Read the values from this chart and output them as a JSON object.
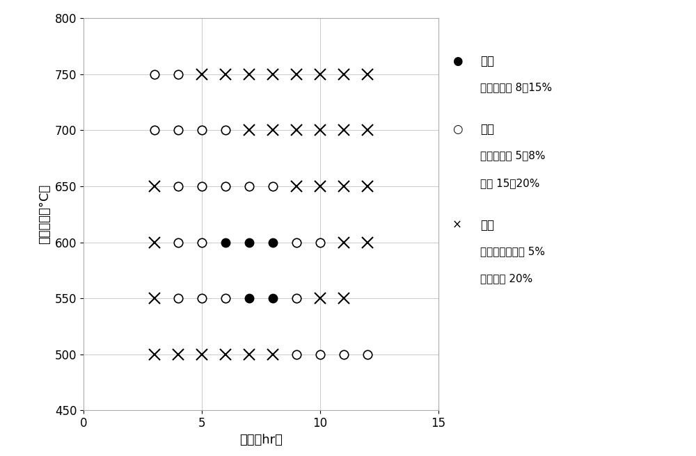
{
  "title": "",
  "xlabel": "时间［hr］",
  "ylabel": "环境温度［°C］",
  "xlim": [
    0,
    15
  ],
  "ylim": [
    450,
    800
  ],
  "xticks": [
    0,
    5,
    10,
    15
  ],
  "yticks": [
    450,
    500,
    550,
    600,
    650,
    700,
    750,
    800
  ],
  "grid": true,
  "figsize": [
    10.0,
    6.56
  ],
  "dpi": 100,
  "data_points": {
    "filled_circle": [
      [
        6,
        600
      ],
      [
        7,
        600
      ],
      [
        8,
        600
      ],
      [
        7,
        550
      ],
      [
        8,
        550
      ]
    ],
    "open_circle": [
      [
        3,
        750
      ],
      [
        4,
        750
      ],
      [
        3,
        700
      ],
      [
        4,
        700
      ],
      [
        5,
        700
      ],
      [
        6,
        700
      ],
      [
        4,
        650
      ],
      [
        5,
        650
      ],
      [
        6,
        650
      ],
      [
        7,
        650
      ],
      [
        8,
        650
      ],
      [
        4,
        600
      ],
      [
        5,
        600
      ],
      [
        9,
        600
      ],
      [
        10,
        600
      ],
      [
        4,
        550
      ],
      [
        5,
        550
      ],
      [
        6,
        550
      ],
      [
        9,
        550
      ],
      [
        9,
        500
      ],
      [
        10,
        500
      ],
      [
        11,
        500
      ],
      [
        12,
        500
      ]
    ],
    "cross": [
      [
        5,
        750
      ],
      [
        6,
        750
      ],
      [
        7,
        750
      ],
      [
        8,
        750
      ],
      [
        9,
        750
      ],
      [
        10,
        750
      ],
      [
        11,
        750
      ],
      [
        12,
        750
      ],
      [
        7,
        700
      ],
      [
        8,
        700
      ],
      [
        9,
        700
      ],
      [
        10,
        700
      ],
      [
        11,
        700
      ],
      [
        12,
        700
      ],
      [
        3,
        650
      ],
      [
        9,
        650
      ],
      [
        10,
        650
      ],
      [
        11,
        650
      ],
      [
        12,
        650
      ],
      [
        3,
        600
      ],
      [
        11,
        600
      ],
      [
        12,
        600
      ],
      [
        3,
        550
      ],
      [
        10,
        550
      ],
      [
        11,
        550
      ],
      [
        3,
        500
      ],
      [
        4,
        500
      ],
      [
        5,
        500
      ],
      [
        6,
        500
      ],
      [
        7,
        500
      ],
      [
        8,
        500
      ]
    ]
  },
  "legend_lines": [
    {
      "marker": "filled_circle",
      "label1": "合适",
      "label2": "体积收缩率 8～15%"
    },
    {
      "marker": "open_circle",
      "label1": "良好",
      "label2": "体积收缩率 5～8%",
      "label3": "或者 15～20%"
    },
    {
      "marker": "cross",
      "label1": "不良",
      "label2": "体积收缩率不到 5%",
      "label3": "或者超过 20%"
    }
  ],
  "marker_size": 9,
  "cross_size": 11,
  "bg_color": "#ffffff",
  "plot_bg_color": "#ffffff",
  "legend_fontsize": 12,
  "legend_sub_fontsize": 11,
  "axis_fontsize": 13,
  "tick_fontsize": 12
}
